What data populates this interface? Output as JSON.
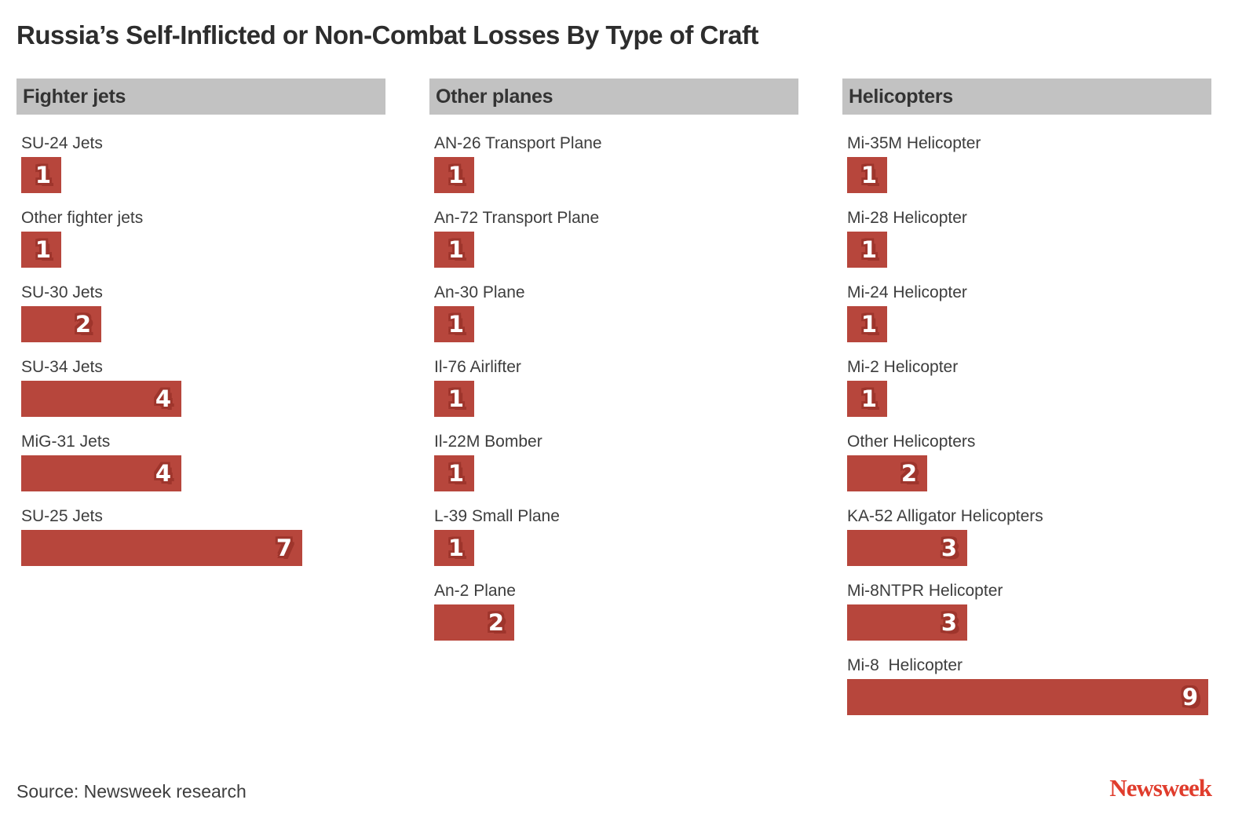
{
  "title": "Russia’s Self-Inflicted or Non-Combat Losses By Type of Craft",
  "source": "Source: Newsweek research",
  "logo": "Newsweek",
  "colors": {
    "bar": "#b7463c",
    "bar_value_shadow": "#9e352c",
    "header_bg": "#c2c2c2",
    "logo_red": "#e03d2d",
    "text_dark": "#2d2d2d"
  },
  "chart_data": {
    "type": "bar",
    "orientation": "horizontal",
    "value_max": 9,
    "grid": false,
    "legend": "none",
    "title": "Russia’s Self-Inflicted or Non-Combat Losses By Type of Craft",
    "groups": [
      {
        "title": "Fighter jets",
        "items": [
          {
            "label": "SU-24 Jets",
            "value": 1
          },
          {
            "label": "Other fighter jets",
            "value": 1
          },
          {
            "label": "SU-30 Jets",
            "value": 2
          },
          {
            "label": "SU-34 Jets",
            "value": 4
          },
          {
            "label": "MiG-31 Jets",
            "value": 4
          },
          {
            "label": "SU-25 Jets",
            "value": 7
          }
        ]
      },
      {
        "title": "Other planes",
        "items": [
          {
            "label": "AN-26 Transport Plane",
            "value": 1
          },
          {
            "label": "An-72 Transport Plane",
            "value": 1
          },
          {
            "label": "An-30 Plane",
            "value": 1
          },
          {
            "label": "Il-76 Airlifter",
            "value": 1
          },
          {
            "label": "Il-22M Bomber",
            "value": 1
          },
          {
            "label": "L-39 Small Plane",
            "value": 1
          },
          {
            "label": "An-2 Plane",
            "value": 2
          }
        ]
      },
      {
        "title": "Helicopters",
        "items": [
          {
            "label": "Mi-35M Helicopter",
            "value": 1
          },
          {
            "label": "Mi-28 Helicopter",
            "value": 1
          },
          {
            "label": "Mi-24 Helicopter",
            "value": 1
          },
          {
            "label": "Mi-2 Helicopter",
            "value": 1
          },
          {
            "label": "Other Helicopters",
            "value": 2
          },
          {
            "label": "KA-52 Alligator Helicopters",
            "value": 3
          },
          {
            "label": "Mi-8NTPR Helicopter",
            "value": 3
          },
          {
            "label": "Mi-8  Helicopter",
            "value": 9
          }
        ]
      }
    ]
  }
}
